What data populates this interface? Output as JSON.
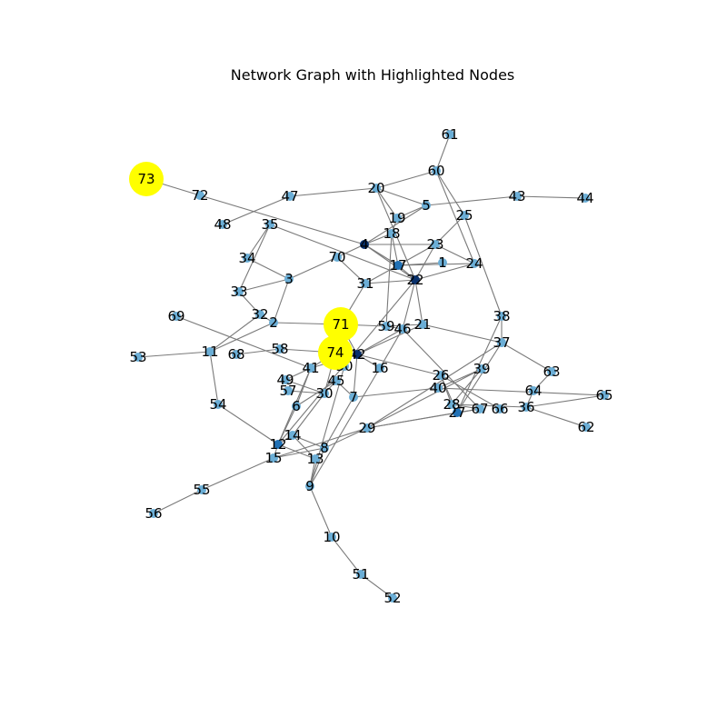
{
  "title": "Network Graph with Highlighted Nodes",
  "colors": {
    "edge": "#7a7a7a",
    "highlight": "#ffff00",
    "node_light": "#6baed6",
    "node_mid": "#2171b5",
    "node_dark": "#08306b"
  },
  "nodes": [
    {
      "id": "1",
      "label": "1",
      "shade": "light"
    },
    {
      "id": "2",
      "label": "2",
      "shade": "light"
    },
    {
      "id": "3",
      "label": "3",
      "shade": "light"
    },
    {
      "id": "4",
      "label": "4",
      "shade": "dark"
    },
    {
      "id": "5",
      "label": "5",
      "shade": "light"
    },
    {
      "id": "6",
      "label": "6",
      "shade": "light"
    },
    {
      "id": "7",
      "label": "7",
      "shade": "light"
    },
    {
      "id": "8",
      "label": "8",
      "shade": "light"
    },
    {
      "id": "9",
      "label": "9",
      "shade": "light"
    },
    {
      "id": "10",
      "label": "10",
      "shade": "light"
    },
    {
      "id": "11",
      "label": "11",
      "shade": "light"
    },
    {
      "id": "12",
      "label": "12",
      "shade": "mid"
    },
    {
      "id": "13",
      "label": "13",
      "shade": "light"
    },
    {
      "id": "14",
      "label": "14",
      "shade": "light"
    },
    {
      "id": "15",
      "label": "15",
      "shade": "light"
    },
    {
      "id": "16",
      "label": "16",
      "shade": "light"
    },
    {
      "id": "17",
      "label": "17",
      "shade": "mid"
    },
    {
      "id": "18",
      "label": "18",
      "shade": "light"
    },
    {
      "id": "19",
      "label": "19",
      "shade": "light"
    },
    {
      "id": "20",
      "label": "20",
      "shade": "light"
    },
    {
      "id": "21",
      "label": "21",
      "shade": "light"
    },
    {
      "id": "22",
      "label": "22",
      "shade": "dark"
    },
    {
      "id": "23",
      "label": "23",
      "shade": "light"
    },
    {
      "id": "24",
      "label": "24",
      "shade": "light"
    },
    {
      "id": "25",
      "label": "25",
      "shade": "light"
    },
    {
      "id": "26",
      "label": "26",
      "shade": "light"
    },
    {
      "id": "27",
      "label": "27",
      "shade": "mid"
    },
    {
      "id": "28",
      "label": "28",
      "shade": "light"
    },
    {
      "id": "29",
      "label": "29",
      "shade": "light"
    },
    {
      "id": "30",
      "label": "30",
      "shade": "light"
    },
    {
      "id": "31",
      "label": "31",
      "shade": "light"
    },
    {
      "id": "32",
      "label": "32",
      "shade": "light"
    },
    {
      "id": "33",
      "label": "33",
      "shade": "light"
    },
    {
      "id": "34",
      "label": "34",
      "shade": "light"
    },
    {
      "id": "35",
      "label": "35",
      "shade": "light"
    },
    {
      "id": "36",
      "label": "36",
      "shade": "light"
    },
    {
      "id": "37",
      "label": "37",
      "shade": "light"
    },
    {
      "id": "38",
      "label": "38",
      "shade": "light"
    },
    {
      "id": "39",
      "label": "39",
      "shade": "light"
    },
    {
      "id": "40",
      "label": "40",
      "shade": "light"
    },
    {
      "id": "41",
      "label": "41",
      "shade": "light"
    },
    {
      "id": "42",
      "label": "42",
      "shade": "dark"
    },
    {
      "id": "43",
      "label": "43",
      "shade": "light"
    },
    {
      "id": "44",
      "label": "44",
      "shade": "light"
    },
    {
      "id": "45",
      "label": "45",
      "shade": "light"
    },
    {
      "id": "46",
      "label": "46",
      "shade": "light"
    },
    {
      "id": "47",
      "label": "47",
      "shade": "light"
    },
    {
      "id": "48",
      "label": "48",
      "shade": "light"
    },
    {
      "id": "49",
      "label": "49",
      "shade": "light"
    },
    {
      "id": "50",
      "label": "50",
      "shade": "light"
    },
    {
      "id": "51",
      "label": "51",
      "shade": "light"
    },
    {
      "id": "52",
      "label": "52",
      "shade": "light"
    },
    {
      "id": "53",
      "label": "53",
      "shade": "light"
    },
    {
      "id": "54",
      "label": "54",
      "shade": "light"
    },
    {
      "id": "55",
      "label": "55",
      "shade": "light"
    },
    {
      "id": "56",
      "label": "56",
      "shade": "light"
    },
    {
      "id": "57",
      "label": "57",
      "shade": "light"
    },
    {
      "id": "58",
      "label": "58",
      "shade": "light"
    },
    {
      "id": "59",
      "label": "59",
      "shade": "light"
    },
    {
      "id": "60",
      "label": "60",
      "shade": "light"
    },
    {
      "id": "61",
      "label": "61",
      "shade": "light"
    },
    {
      "id": "62",
      "label": "62",
      "shade": "light"
    },
    {
      "id": "63",
      "label": "63",
      "shade": "light"
    },
    {
      "id": "64",
      "label": "64",
      "shade": "light"
    },
    {
      "id": "65",
      "label": "65",
      "shade": "light"
    },
    {
      "id": "66",
      "label": "66",
      "shade": "light"
    },
    {
      "id": "67",
      "label": "67",
      "shade": "light"
    },
    {
      "id": "68",
      "label": "68",
      "shade": "light"
    },
    {
      "id": "69",
      "label": "69",
      "shade": "light"
    },
    {
      "id": "70",
      "label": "70",
      "shade": "light"
    },
    {
      "id": "71",
      "label": "71",
      "shade": "highlight"
    },
    {
      "id": "72",
      "label": "72",
      "shade": "light"
    },
    {
      "id": "73",
      "label": "73",
      "shade": "highlight"
    },
    {
      "id": "74",
      "label": "74",
      "shade": "highlight"
    }
  ],
  "edges": [
    [
      "73",
      "72"
    ],
    [
      "72",
      "4"
    ],
    [
      "4",
      "17"
    ],
    [
      "4",
      "23"
    ],
    [
      "4",
      "5"
    ],
    [
      "4",
      "18"
    ],
    [
      "4",
      "22"
    ],
    [
      "48",
      "47"
    ],
    [
      "47",
      "20"
    ],
    [
      "20",
      "60"
    ],
    [
      "60",
      "61"
    ],
    [
      "20",
      "5"
    ],
    [
      "20",
      "19"
    ],
    [
      "20",
      "22"
    ],
    [
      "5",
      "43"
    ],
    [
      "43",
      "44"
    ],
    [
      "5",
      "19"
    ],
    [
      "60",
      "25"
    ],
    [
      "60",
      "24"
    ],
    [
      "25",
      "23"
    ],
    [
      "25",
      "38"
    ],
    [
      "19",
      "18"
    ],
    [
      "18",
      "17"
    ],
    [
      "18",
      "59"
    ],
    [
      "17",
      "1"
    ],
    [
      "17",
      "22"
    ],
    [
      "17",
      "31"
    ],
    [
      "17",
      "24"
    ],
    [
      "23",
      "24"
    ],
    [
      "23",
      "22"
    ],
    [
      "23",
      "17"
    ],
    [
      "22",
      "31"
    ],
    [
      "22",
      "21"
    ],
    [
      "22",
      "46"
    ],
    [
      "22",
      "24"
    ],
    [
      "22",
      "12"
    ],
    [
      "22",
      "35"
    ],
    [
      "35",
      "34"
    ],
    [
      "35",
      "33"
    ],
    [
      "34",
      "3"
    ],
    [
      "3",
      "70"
    ],
    [
      "3",
      "2"
    ],
    [
      "3",
      "33"
    ],
    [
      "33",
      "32"
    ],
    [
      "32",
      "2"
    ],
    [
      "32",
      "11"
    ],
    [
      "2",
      "11"
    ],
    [
      "2",
      "71"
    ],
    [
      "70",
      "4"
    ],
    [
      "70",
      "31"
    ],
    [
      "31",
      "71"
    ],
    [
      "71",
      "59"
    ],
    [
      "71",
      "42"
    ],
    [
      "71",
      "74"
    ],
    [
      "74",
      "50"
    ],
    [
      "74",
      "41"
    ],
    [
      "74",
      "30"
    ],
    [
      "42",
      "46"
    ],
    [
      "42",
      "21"
    ],
    [
      "42",
      "26"
    ],
    [
      "42",
      "16"
    ],
    [
      "42",
      "7"
    ],
    [
      "42",
      "41"
    ],
    [
      "59",
      "46"
    ],
    [
      "59",
      "21"
    ],
    [
      "46",
      "67"
    ],
    [
      "46",
      "16"
    ],
    [
      "21",
      "37"
    ],
    [
      "37",
      "38"
    ],
    [
      "37",
      "63"
    ],
    [
      "37",
      "27"
    ],
    [
      "37",
      "29"
    ],
    [
      "38",
      "27"
    ],
    [
      "63",
      "64"
    ],
    [
      "64",
      "36"
    ],
    [
      "36",
      "62"
    ],
    [
      "36",
      "65"
    ],
    [
      "36",
      "28"
    ],
    [
      "26",
      "27"
    ],
    [
      "26",
      "28"
    ],
    [
      "26",
      "66"
    ],
    [
      "40",
      "39"
    ],
    [
      "39",
      "28"
    ],
    [
      "39",
      "29"
    ],
    [
      "40",
      "65"
    ],
    [
      "40",
      "7"
    ],
    [
      "28",
      "67"
    ],
    [
      "27",
      "67"
    ],
    [
      "7",
      "45"
    ],
    [
      "7",
      "8"
    ],
    [
      "45",
      "30"
    ],
    [
      "45",
      "6"
    ],
    [
      "30",
      "49"
    ],
    [
      "30",
      "57"
    ],
    [
      "30",
      "14"
    ],
    [
      "41",
      "49"
    ],
    [
      "41",
      "6"
    ],
    [
      "41",
      "12"
    ],
    [
      "50",
      "9"
    ],
    [
      "6",
      "12"
    ],
    [
      "12",
      "14"
    ],
    [
      "12",
      "15"
    ],
    [
      "12",
      "13"
    ],
    [
      "12",
      "54"
    ],
    [
      "14",
      "13"
    ],
    [
      "14",
      "8"
    ],
    [
      "8",
      "29"
    ],
    [
      "8",
      "15"
    ],
    [
      "8",
      "9"
    ],
    [
      "15",
      "55"
    ],
    [
      "55",
      "56"
    ],
    [
      "15",
      "29"
    ],
    [
      "13",
      "9"
    ],
    [
      "9",
      "10"
    ],
    [
      "10",
      "51"
    ],
    [
      "51",
      "52"
    ],
    [
      "11",
      "53"
    ],
    [
      "11",
      "54"
    ],
    [
      "69",
      "41"
    ],
    [
      "68",
      "58"
    ],
    [
      "58",
      "74"
    ],
    [
      "29",
      "67"
    ],
    [
      "29",
      "27"
    ],
    [
      "16",
      "9"
    ]
  ]
}
